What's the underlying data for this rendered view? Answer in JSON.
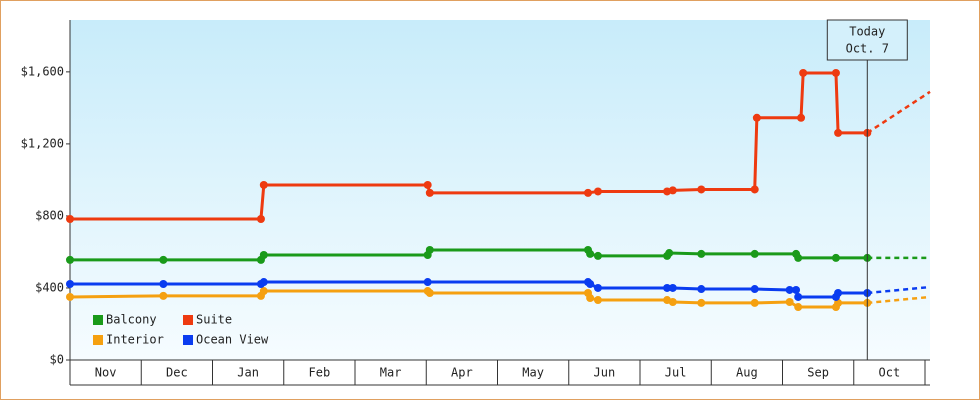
{
  "chart_data": {
    "type": "line",
    "ylim": [
      0,
      1888
    ],
    "yticks": [
      {
        "value": 0,
        "label": "$0"
      },
      {
        "value": 400,
        "label": "$400"
      },
      {
        "value": 800,
        "label": "$800"
      },
      {
        "value": 1200,
        "label": "$1,200"
      },
      {
        "value": 1600,
        "label": "$1,600"
      }
    ],
    "xlim": [
      0,
      12.07
    ],
    "xticks": [
      {
        "value": 0.5,
        "label": "Nov"
      },
      {
        "value": 1.5,
        "label": "Dec"
      },
      {
        "value": 2.5,
        "label": "Jan"
      },
      {
        "value": 3.5,
        "label": "Feb"
      },
      {
        "value": 4.5,
        "label": "Mar"
      },
      {
        "value": 5.5,
        "label": "Apr"
      },
      {
        "value": 6.5,
        "label": "May"
      },
      {
        "value": 7.5,
        "label": "Jun"
      },
      {
        "value": 8.5,
        "label": "Jul"
      },
      {
        "value": 9.5,
        "label": "Aug"
      },
      {
        "value": 10.5,
        "label": "Sep"
      },
      {
        "value": 11.5,
        "label": "Oct"
      }
    ],
    "today": {
      "x": 11.19,
      "text": [
        "Today",
        "Oct. 7"
      ]
    },
    "forecast_x": [
      11.19,
      12.07
    ],
    "series": [
      {
        "name": "Balcony",
        "color": "#1a9a1a",
        "x": [
          0,
          1.31,
          2.68,
          2.72,
          5.02,
          5.05,
          7.27,
          7.3,
          7.41,
          8.38,
          8.41,
          8.86,
          9.61,
          10.19,
          10.22,
          10.75,
          11.19
        ],
        "values": [
          556,
          556,
          556,
          583,
          583,
          611,
          611,
          589,
          578,
          578,
          594,
          589,
          589,
          589,
          567,
          567,
          567
        ],
        "forecast_values": [
          567,
          567
        ]
      },
      {
        "name": "Suite",
        "color": "#ee3a10",
        "x": [
          0,
          2.68,
          2.72,
          5.02,
          5.05,
          7.27,
          7.41,
          8.38,
          8.46,
          8.86,
          9.61,
          9.64,
          10.26,
          10.29,
          10.75,
          10.78,
          11.19
        ],
        "values": [
          783,
          783,
          972,
          972,
          928,
          928,
          936,
          936,
          942,
          947,
          947,
          1345,
          1345,
          1594,
          1594,
          1261,
          1261
        ],
        "forecast_values": [
          1261,
          1489
        ]
      },
      {
        "name": "Interior",
        "color": "#f5a010",
        "x": [
          0,
          1.31,
          2.68,
          2.72,
          5.02,
          5.05,
          7.27,
          7.3,
          7.41,
          8.38,
          8.46,
          8.86,
          9.61,
          10.1,
          10.22,
          10.75,
          10.78,
          11.19
        ],
        "values": [
          350,
          356,
          356,
          383,
          383,
          372,
          372,
          344,
          333,
          333,
          322,
          317,
          317,
          322,
          294,
          294,
          317,
          317
        ],
        "forecast_values": [
          317,
          350
        ]
      },
      {
        "name": "Ocean View",
        "color": "#0a3cf0",
        "x": [
          0,
          1.31,
          2.68,
          2.72,
          5.02,
          7.27,
          7.3,
          7.41,
          8.38,
          8.46,
          8.86,
          9.61,
          10.1,
          10.19,
          10.22,
          10.75,
          10.78,
          11.19
        ],
        "values": [
          422,
          422,
          422,
          433,
          433,
          433,
          422,
          400,
          400,
          400,
          394,
          394,
          389,
          389,
          350,
          350,
          372,
          372
        ],
        "forecast_values": [
          372,
          405
        ]
      }
    ]
  }
}
